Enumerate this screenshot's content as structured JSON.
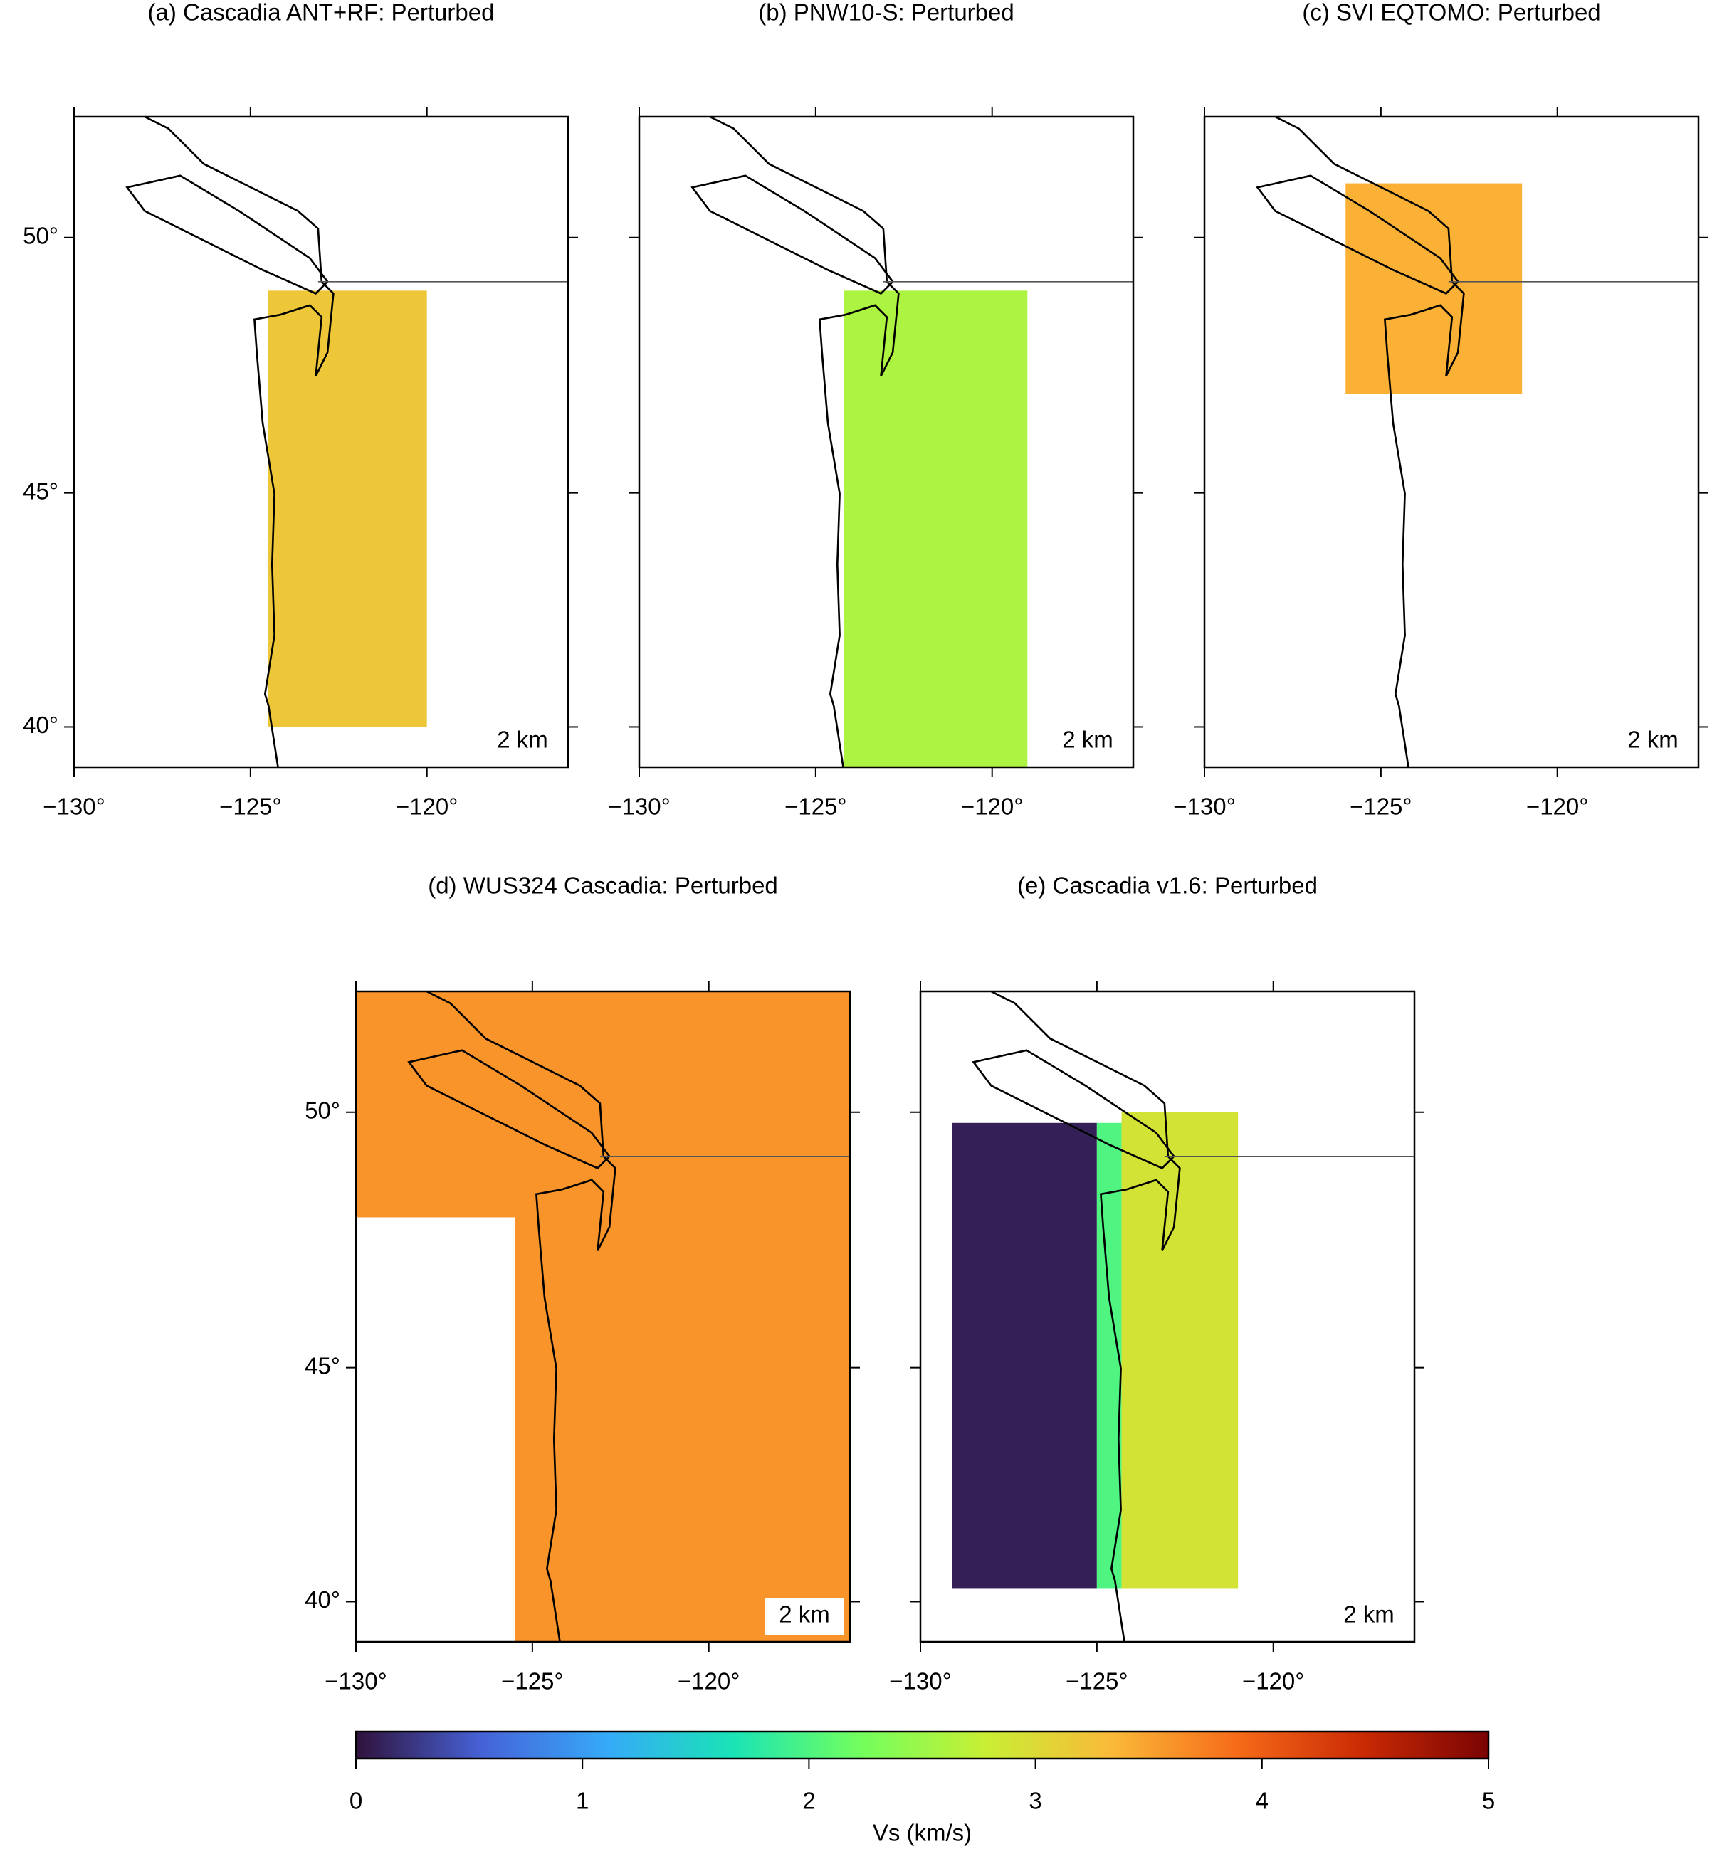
{
  "panels": [
    {
      "title": "(a) Cascadia ANT+RF: Perturbed",
      "depth_label": "2 km",
      "xlim": [
        -130,
        -116
      ],
      "ylim": [
        39.1,
        52.2
      ],
      "xticks": [
        {
          "value": -130,
          "label": "−130°"
        },
        {
          "value": -125,
          "label": "−125°"
        },
        {
          "value": -120,
          "label": "−120°"
        }
      ],
      "yticks": [
        {
          "value": 40,
          "label": "40°"
        },
        {
          "value": 45,
          "label": "45°"
        },
        {
          "value": 50,
          "label": "50°"
        }
      ],
      "regions": [
        {
          "lon": [
            -124.5,
            -120
          ],
          "lat": [
            40,
            49
          ],
          "vs": 3.2
        }
      ]
    },
    {
      "title": "(b) PNW10-S: Perturbed",
      "depth_label": "2 km",
      "xlim": [
        -130,
        -116
      ],
      "ylim": [
        39.1,
        52.2
      ],
      "xticks": [
        {
          "value": -130,
          "label": "−130°"
        },
        {
          "value": -125,
          "label": "−125°"
        },
        {
          "value": -120,
          "label": "−120°"
        }
      ],
      "yticks": [
        40,
        45,
        50
      ],
      "regions": [
        {
          "lon": [
            -124.2,
            -119
          ],
          "lat": [
            39.1,
            49
          ],
          "vs": 2.6
        }
      ]
    },
    {
      "title": "(c) SVI EQTOMO: Perturbed",
      "depth_label": "2 km",
      "xlim": [
        -130,
        -116
      ],
      "ylim": [
        39.1,
        52.2
      ],
      "xticks": [
        {
          "value": -130,
          "label": "−130°"
        },
        {
          "value": -125,
          "label": "−125°"
        },
        {
          "value": -120,
          "label": "−120°"
        }
      ],
      "yticks": [
        40,
        45,
        50
      ],
      "regions": [
        {
          "lon": [
            -126,
            -121
          ],
          "lat": [
            47,
            51
          ],
          "vs": 3.4
        }
      ]
    },
    {
      "title": "(d) WUS324 Cascadia: Perturbed",
      "depth_label": "2 km",
      "xlim": [
        -130,
        -116
      ],
      "ylim": [
        39.1,
        52.2
      ],
      "xticks": [
        {
          "value": -130,
          "label": "−130°"
        },
        {
          "value": -125,
          "label": "−125°"
        },
        {
          "value": -120,
          "label": "−120°"
        }
      ],
      "yticks": [
        {
          "value": 40,
          "label": "40°"
        },
        {
          "value": 45,
          "label": "45°"
        },
        {
          "value": 50,
          "label": "50°"
        }
      ],
      "regions": [
        {
          "lon": [
            -125.5,
            -116
          ],
          "lat": [
            39.1,
            52.2
          ],
          "vs": 3.6
        },
        {
          "lon": [
            -130,
            -125.5
          ],
          "lat": [
            48,
            52.2
          ],
          "vs": 3.6
        }
      ]
    },
    {
      "title": "(e) Cascadia v1.6: Perturbed",
      "depth_label": "2 km",
      "xlim": [
        -130,
        -116
      ],
      "ylim": [
        39.1,
        52.2
      ],
      "xticks": [
        {
          "value": -130,
          "label": "−130°"
        },
        {
          "value": -125,
          "label": "−125°"
        },
        {
          "value": -120,
          "label": "−120°"
        }
      ],
      "yticks": [
        40,
        45,
        50
      ],
      "regions": [
        {
          "lon": [
            -129.1,
            -125
          ],
          "lat": [
            40.3,
            49.8
          ],
          "vs": 0.1
        },
        {
          "lon": [
            -125,
            -124.3
          ],
          "lat": [
            40.3,
            49.8
          ],
          "vs": 2.0
        },
        {
          "lon": [
            -124.3,
            -121
          ],
          "lat": [
            40.3,
            50
          ],
          "vs": 2.9
        }
      ]
    }
  ],
  "projection": "mercator",
  "colorbar": {
    "label": "Vs (km/s)",
    "clim": [
      0,
      5
    ],
    "ticks": [
      0,
      1,
      2,
      3,
      4,
      5
    ],
    "colormap": [
      "#30123b",
      "#4662d7",
      "#36aaf9",
      "#1ae4b6",
      "#72fe5e",
      "#c8ef34",
      "#faba39",
      "#f66b19",
      "#ca2a04",
      "#7a0403"
    ]
  }
}
